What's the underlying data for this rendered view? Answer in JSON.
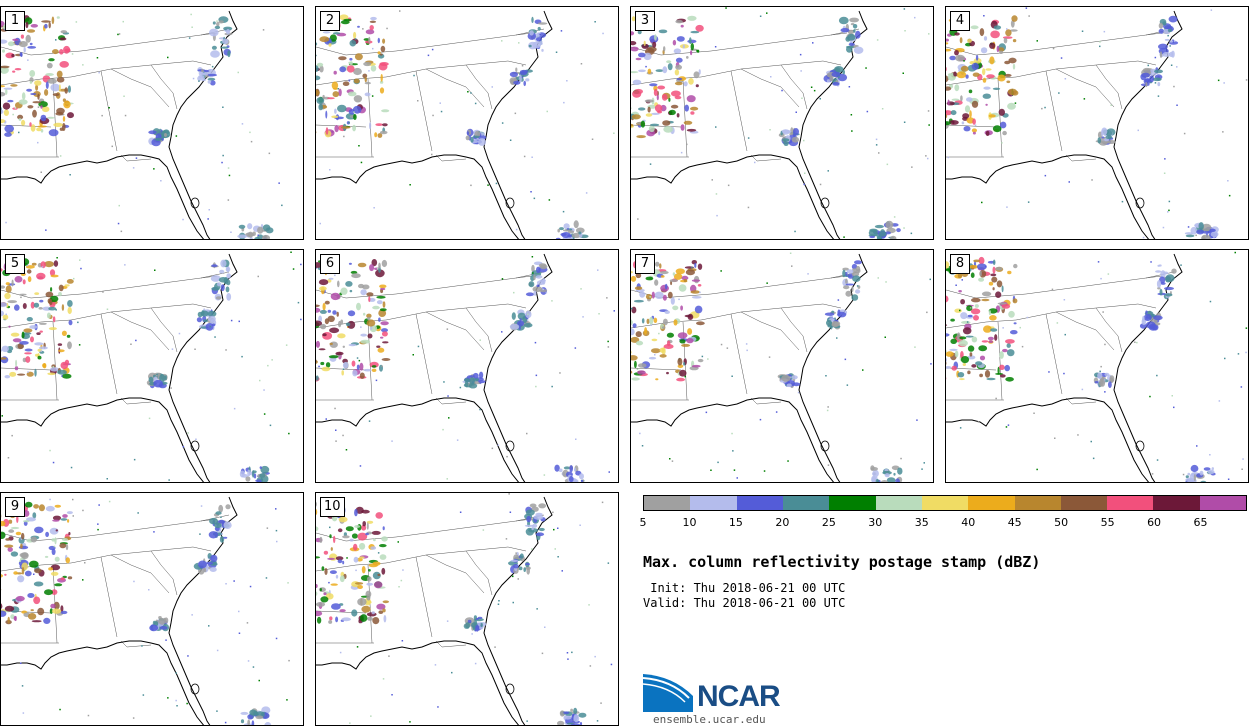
{
  "panels": [
    {
      "label": "1"
    },
    {
      "label": "2"
    },
    {
      "label": "3"
    },
    {
      "label": "4"
    },
    {
      "label": "5"
    },
    {
      "label": "6"
    },
    {
      "label": "7"
    },
    {
      "label": "8"
    },
    {
      "label": "9"
    },
    {
      "label": "10"
    }
  ],
  "colorbar": {
    "colors": [
      "#a0a0a0",
      "#b4bcec",
      "#545cd8",
      "#4a8d96",
      "#007f00",
      "#b9dcbc",
      "#f0dc64",
      "#ecac1c",
      "#b8862e",
      "#8b5838",
      "#f2507c",
      "#6c1838",
      "#b04ca8"
    ],
    "ticks": [
      "5",
      "10",
      "15",
      "20",
      "25",
      "30",
      "35",
      "40",
      "45",
      "50",
      "55",
      "60",
      "65"
    ]
  },
  "title": "Max. column reflectivity postage stamp (dBZ)",
  "init": " Init: Thu 2018-06-21 00 UTC",
  "valid": "Valid: Thu 2018-06-21 00 UTC",
  "logo": {
    "text": "NCAR",
    "url": "ensemble.ucar.edu"
  }
}
